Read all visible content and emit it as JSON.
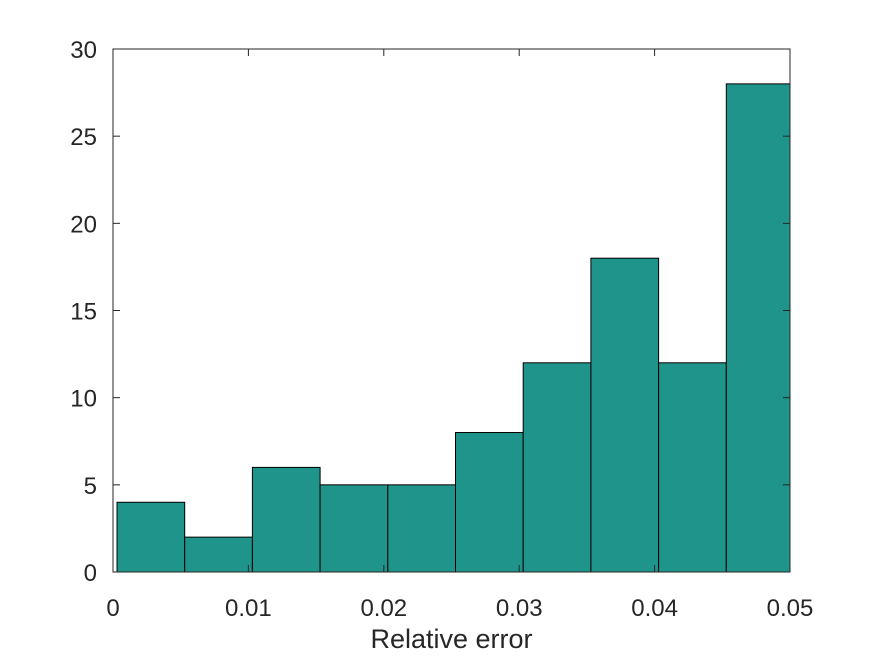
{
  "chart_data": {
    "type": "bar",
    "title": "",
    "xlabel": "Relative error",
    "ylabel": "",
    "bin_edges": [
      0,
      0.005,
      0.01,
      0.015,
      0.02,
      0.025,
      0.03,
      0.035,
      0.04,
      0.045,
      0.05
    ],
    "values": [
      4,
      2,
      6,
      5,
      5,
      8,
      12,
      18,
      12,
      28
    ],
    "xlim": [
      0,
      0.05
    ],
    "ylim": [
      0,
      30
    ],
    "x_ticks": [
      0,
      0.01,
      0.02,
      0.03,
      0.04,
      0.05
    ],
    "x_tick_labels": [
      "0",
      "0.01",
      "0.02",
      "0.03",
      "0.04",
      "0.05"
    ],
    "y_ticks": [
      0,
      5,
      10,
      15,
      20,
      25,
      30
    ],
    "y_tick_labels": [
      "0",
      "5",
      "10",
      "15",
      "20",
      "25",
      "30"
    ],
    "grid": false,
    "legend": "none",
    "bar_color": "#1f948a",
    "edge_color": "#000000"
  }
}
